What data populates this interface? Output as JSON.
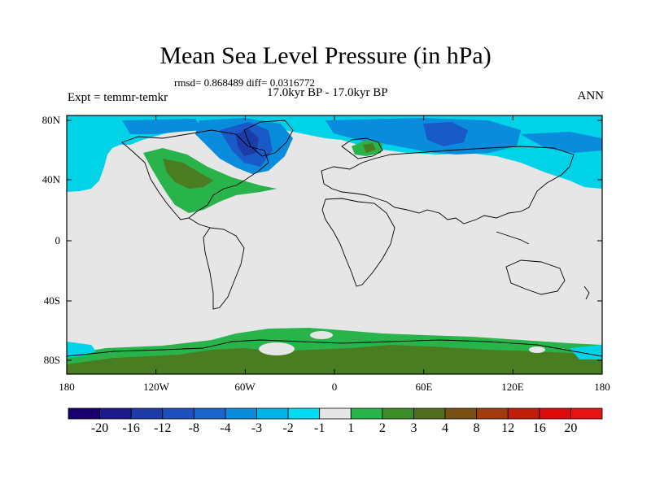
{
  "title": "Mean Sea Level Pressure (in hPa)",
  "stats_line": "rmsd= 0.868489 diff= 0.0316772",
  "comparison": "17.0kyr BP - 17.0kyr BP",
  "experiment": "Expt = temmr-temkr",
  "season": "ANN",
  "y_ticks": [
    "80N",
    "40N",
    "0",
    "40S",
    "80S"
  ],
  "x_ticks": [
    "180",
    "120W",
    "60W",
    "0",
    "60E",
    "120E",
    "180"
  ],
  "colorbar": {
    "labels": [
      "-20",
      "-16",
      "-12",
      "-8",
      "-4",
      "-3",
      "-2",
      "-1",
      "1",
      "2",
      "3",
      "4",
      "8",
      "12",
      "16",
      "20"
    ],
    "colors": [
      "#190070",
      "#1e1a8c",
      "#1e3ca8",
      "#1e50c0",
      "#1a64cc",
      "#0a8cdc",
      "#00b4e6",
      "#00dcf0",
      "#e6e6e6",
      "#28b44a",
      "#3c8c28",
      "#506e1e",
      "#785014",
      "#a03c10",
      "#c01e0a",
      "#dc0a0a",
      "#e61414"
    ]
  },
  "map_colors": {
    "land_neutral": "#e6e6e6",
    "coastline": "#000000",
    "light_blue": "#00d2e8",
    "mid_blue": "#0a8cdc",
    "deep_blue": "#1a5ac8",
    "navy": "#1e3ca8",
    "green": "#28b44a",
    "dark_green": "#4a7d22"
  }
}
